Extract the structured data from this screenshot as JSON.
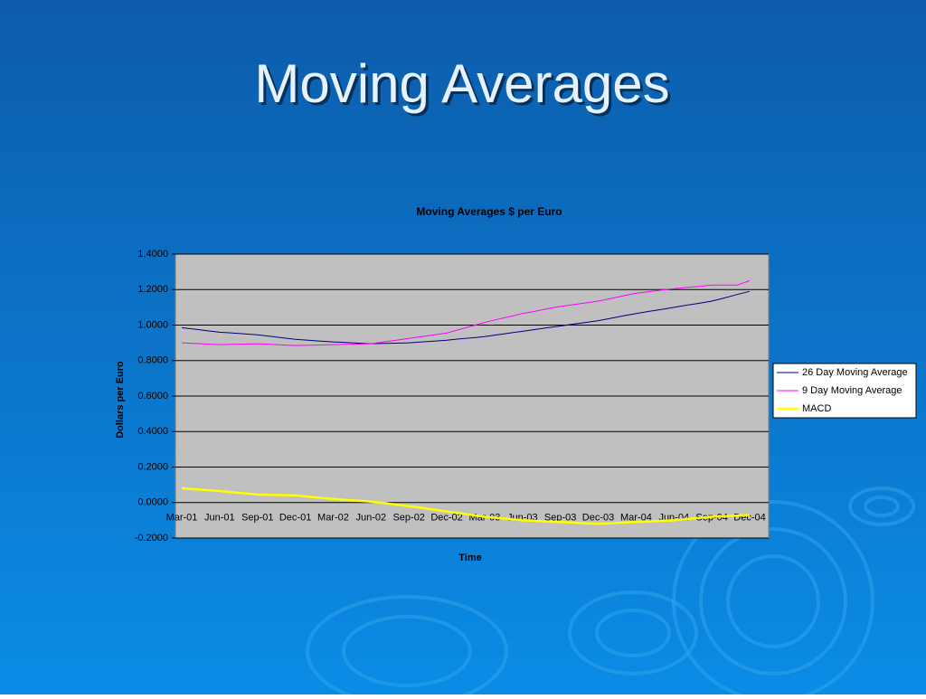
{
  "slide_title": "Moving Averages",
  "chart_data": {
    "type": "line",
    "title": "Moving Averages $ per Euro",
    "x_label": "Time",
    "y_label": "Dollars per Euro",
    "categories": [
      "Mar-01",
      null,
      null,
      "Jun-01",
      null,
      null,
      "Sep-01",
      null,
      null,
      "Dec-01",
      null,
      null,
      "Mar-02",
      null,
      null,
      "Jun-02",
      null,
      null,
      "Sep-02",
      null,
      null,
      "Dec-02",
      null,
      null,
      "Mar-03",
      null,
      null,
      "Jun-03",
      null,
      null,
      "Sep-03",
      null,
      null,
      "Dec-03",
      null,
      null,
      "Mar-04",
      null,
      null,
      "Jun-04",
      null,
      null,
      "Sep-04",
      null,
      null,
      "Dec-04"
    ],
    "series": [
      {
        "name": "26 Day Moving Average",
        "color": "#000080",
        "width": 1,
        "values": [
          0.985,
          0.977,
          0.968,
          0.96,
          0.955,
          0.95,
          0.945,
          0.937,
          0.928,
          0.92,
          0.915,
          0.91,
          0.905,
          0.902,
          0.898,
          0.895,
          0.897,
          0.898,
          0.9,
          0.905,
          0.91,
          0.915,
          0.922,
          0.928,
          0.935,
          0.945,
          0.955,
          0.965,
          0.975,
          0.985,
          0.995,
          1.005,
          1.015,
          1.025,
          1.038,
          1.052,
          1.065,
          1.077,
          1.088,
          1.1,
          1.112,
          1.123,
          1.135,
          1.153,
          1.172,
          1.19
        ]
      },
      {
        "name": "9 Day Moving Average",
        "color": "#ff00ff",
        "width": 1,
        "values": [
          0.9,
          0.897,
          0.893,
          0.89,
          0.892,
          0.893,
          0.895,
          0.892,
          0.888,
          0.885,
          0.887,
          0.888,
          0.89,
          0.892,
          0.893,
          0.895,
          0.905,
          0.915,
          0.925,
          0.935,
          0.945,
          0.955,
          0.975,
          0.995,
          1.015,
          1.032,
          1.048,
          1.065,
          1.078,
          1.092,
          1.105,
          1.115,
          1.125,
          1.135,
          1.15,
          1.165,
          1.18,
          1.188,
          1.197,
          1.205,
          1.212,
          1.218,
          1.225,
          1.225,
          1.225,
          1.25
        ]
      },
      {
        "name": "MACD",
        "color": "#ffff00",
        "width": 2.5,
        "values": [
          0.08,
          0.075,
          0.07,
          0.065,
          0.058,
          0.052,
          0.045,
          0.043,
          0.042,
          0.04,
          0.033,
          0.027,
          0.02,
          0.015,
          0.01,
          0.005,
          -0.003,
          -0.012,
          -0.02,
          -0.03,
          -0.04,
          -0.05,
          -0.06,
          -0.07,
          -0.08,
          -0.087,
          -0.093,
          -0.1,
          -0.103,
          -0.107,
          -0.11,
          -0.113,
          -0.117,
          -0.12,
          -0.117,
          -0.113,
          -0.11,
          -0.107,
          -0.103,
          -0.1,
          -0.093,
          -0.087,
          -0.08,
          -0.077,
          -0.073,
          -0.07
        ]
      }
    ],
    "ylim": [
      -0.2,
      1.4
    ],
    "yticks": [
      {
        "value": -0.2,
        "label": "-0.2000"
      },
      {
        "value": 0,
        "label": "0.0000"
      },
      {
        "value": 0.2,
        "label": "0.2000"
      },
      {
        "value": 0.4,
        "label": "0.4000"
      },
      {
        "value": 0.6,
        "label": "0.6000"
      },
      {
        "value": 0.8,
        "label": "0.8000"
      },
      {
        "value": 1.0,
        "label": "1.0000"
      },
      {
        "value": 1.2,
        "label": "1.2000"
      },
      {
        "value": 1.4,
        "label": "1.4000"
      }
    ],
    "grid": true,
    "legend": "right",
    "plot_color": "#c0c0c0"
  }
}
